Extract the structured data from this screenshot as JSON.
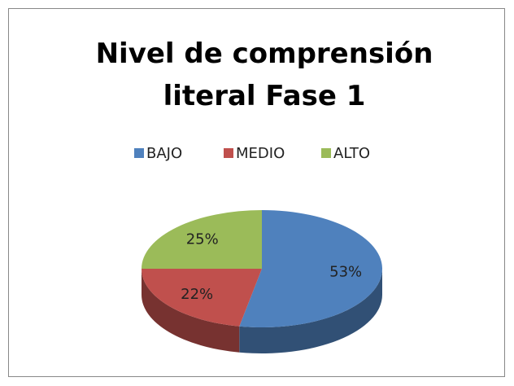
{
  "chart_data": {
    "type": "pie",
    "title": "Nivel de comprensión literal Fase 1",
    "categories": [
      "BAJO",
      "MEDIO",
      "ALTO"
    ],
    "values": [
      53,
      22,
      25
    ],
    "value_labels": [
      "53%",
      "22%",
      "25%"
    ],
    "colors": [
      "#4f81bd",
      "#c0504d",
      "#9bbb59"
    ],
    "legend": "top"
  }
}
